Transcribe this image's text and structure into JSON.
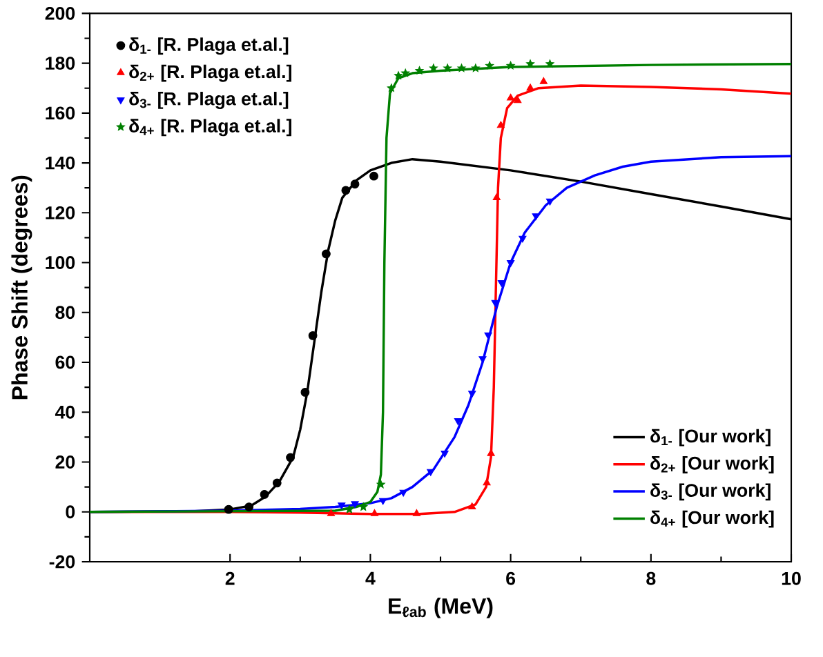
{
  "chart_data": {
    "type": "line",
    "xlabel": "E$_{ℓab}$ (MeV)",
    "ylabel": "Phase Shift (degrees)",
    "xlim": [
      0,
      10
    ],
    "ylim": [
      -20,
      200
    ],
    "xticks": [
      2,
      4,
      6,
      8,
      10
    ],
    "yticks": [
      -20,
      0,
      20,
      40,
      60,
      80,
      100,
      120,
      140,
      160,
      180,
      200
    ],
    "grid": false,
    "legend": "top left",
    "series": [
      {
        "name": "δ$_{1-}$ [Our work]",
        "color": "#000000",
        "line_style": "solid",
        "marker": "none",
        "x": [
          0,
          1.5,
          2,
          2.3,
          2.5,
          2.7,
          2.9,
          3.0,
          3.1,
          3.2,
          3.3,
          3.4,
          3.5,
          3.6,
          3.8,
          4.0,
          4.3,
          4.6,
          5,
          6,
          7,
          8,
          9,
          10
        ],
        "values": [
          0,
          0.3,
          1,
          2.5,
          6,
          12,
          22,
          33,
          48,
          68,
          88,
          105,
          117,
          126,
          133,
          137,
          140,
          141.5,
          140.5,
          137,
          132.5,
          127.5,
          122.5,
          117.4
        ]
      },
      {
        "name": "δ$_{2+}$ [Our work]",
        "color": "#ff0000",
        "line_style": "solid",
        "marker": "none",
        "x": [
          0,
          2,
          3,
          4,
          4.7,
          5.2,
          5.5,
          5.65,
          5.72,
          5.76,
          5.79,
          5.82,
          5.86,
          5.95,
          6.1,
          6.4,
          7,
          8,
          9,
          10
        ],
        "values": [
          0,
          0,
          -0.3,
          -0.8,
          -0.8,
          0,
          3,
          10,
          22,
          50,
          90,
          130,
          150,
          162,
          167,
          170,
          171,
          170.5,
          169.5,
          167.8
        ]
      },
      {
        "name": "δ$_{3-}$ [Our work]",
        "color": "#0000ff",
        "line_style": "solid",
        "marker": "none",
        "x": [
          0,
          2,
          3,
          3.5,
          4,
          4.3,
          4.6,
          4.9,
          5.2,
          5.4,
          5.6,
          5.8,
          6.0,
          6.2,
          6.5,
          6.8,
          7.2,
          7.6,
          8,
          9,
          10
        ],
        "values": [
          0,
          0.5,
          1.2,
          2,
          3.5,
          5.5,
          10,
          17,
          30,
          43,
          60,
          82,
          100,
          112,
          123,
          130,
          135,
          138.5,
          140.5,
          142.3,
          142.7
        ]
      },
      {
        "name": "δ$_{4+}$ [Our work]",
        "color": "#008000",
        "line_style": "solid",
        "marker": "none",
        "x": [
          0,
          3.5,
          3.8,
          4.0,
          4.1,
          4.15,
          4.18,
          4.2,
          4.23,
          4.28,
          4.4,
          4.6,
          5,
          6,
          8,
          10
        ],
        "values": [
          0,
          0.5,
          2,
          4,
          8,
          15,
          40,
          100,
          150,
          168,
          174,
          176,
          177,
          178.5,
          179.3,
          179.7
        ]
      },
      {
        "name": "δ$_{1-}$ [R. Plaga et.al.]",
        "type": "scatter",
        "color": "#000000",
        "marker": "circle",
        "x": [
          1.98,
          2.27,
          2.49,
          2.67,
          2.86,
          3.07,
          3.18,
          3.37,
          3.65,
          3.78,
          4.05
        ],
        "values": [
          1,
          2,
          7,
          11.6,
          21.8,
          48,
          70.7,
          103.5,
          129,
          131.5,
          134.7
        ]
      },
      {
        "name": "δ$_{2+}$ [R. Plaga et.al.]",
        "type": "scatter",
        "color": "#ff0000",
        "marker": "triangle",
        "x": [
          3.44,
          4.06,
          4.66,
          5.45,
          5.66,
          5.72,
          5.8,
          5.86,
          6.0,
          6.1,
          6.28,
          6.47
        ],
        "values": [
          -0.7,
          -0.7,
          -0.7,
          2,
          11.6,
          23.4,
          126,
          155,
          166,
          165,
          170,
          172.6
        ]
      },
      {
        "name": "δ$_{3-}$ [R. Plaga et.al.]",
        "type": "scatter",
        "color": "#0000ff",
        "marker": "triangle-down",
        "x": [
          3.59,
          3.78,
          4.18,
          4.47,
          4.86,
          5.06,
          5.25,
          5.45,
          5.6,
          5.68,
          5.78,
          5.87,
          6.0,
          6.17,
          6.36,
          6.56
        ],
        "values": [
          2.8,
          3.3,
          4.6,
          7.9,
          16.2,
          23.6,
          36.6,
          47.6,
          61.5,
          71,
          84,
          92,
          100,
          109.8,
          118.8,
          124.7
        ]
      },
      {
        "name": "δ$_{4+}$ [R. Plaga et.al.]",
        "type": "scatter",
        "color": "#008000",
        "marker": "star",
        "x": [
          3.7,
          3.9,
          4.15,
          4.3,
          4.4,
          4.5,
          4.7,
          4.9,
          5.1,
          5.3,
          5.5,
          5.7,
          6.0,
          6.28,
          6.56
        ],
        "values": [
          1,
          2,
          11,
          170,
          175,
          176,
          177,
          178,
          178,
          178,
          178,
          179,
          179,
          179.7,
          179.7
        ]
      }
    ]
  }
}
